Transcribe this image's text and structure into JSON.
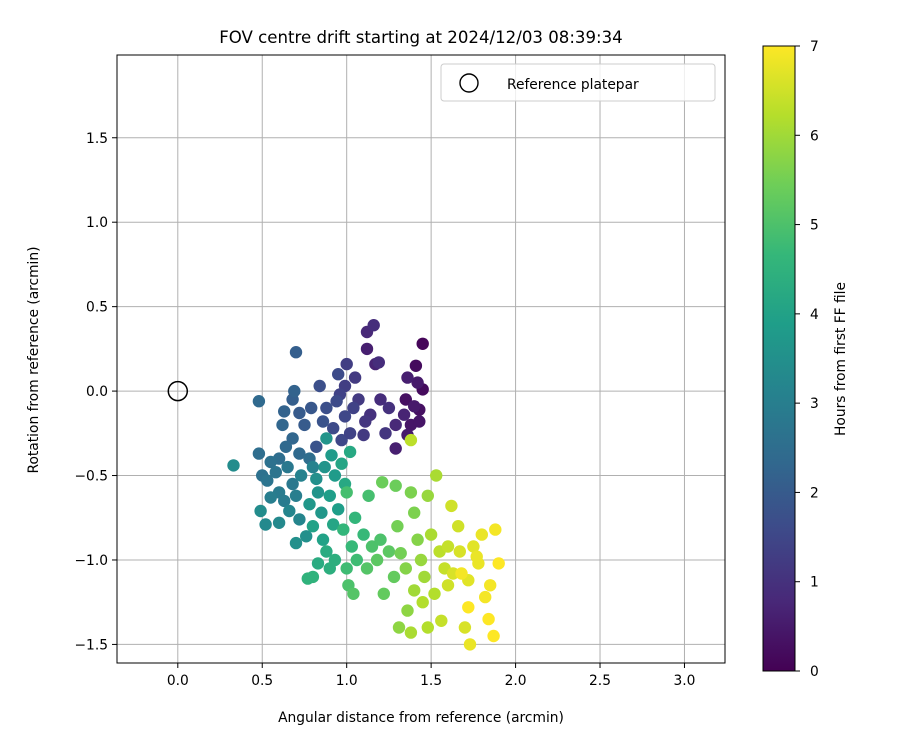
{
  "chart_data": {
    "type": "scatter",
    "title": "FOV centre drift starting at 2024/12/03 08:39:34",
    "xlabel": "Angular distance from reference (arcmin)",
    "ylabel": "Rotation from reference (arcmin)",
    "xlim": [
      -0.36,
      3.24
    ],
    "ylim": [
      -1.61,
      1.99
    ],
    "x_ticks": [
      0.0,
      0.5,
      1.0,
      1.5,
      2.0,
      2.5,
      3.0
    ],
    "x_tick_labels": [
      "0.0",
      "0.5",
      "1.0",
      "1.5",
      "2.0",
      "2.5",
      "3.0"
    ],
    "y_ticks": [
      -1.5,
      -1.0,
      -0.5,
      0.0,
      0.5,
      1.0,
      1.5
    ],
    "y_tick_labels": [
      "−1.5",
      "−1.0",
      "−0.5",
      "0.0",
      "0.5",
      "1.0",
      "1.5"
    ],
    "grid": true,
    "legend": {
      "placement": "top-right",
      "entries": [
        "Reference platepar"
      ]
    },
    "reference_point": {
      "name": "Reference platepar",
      "x": 0.0,
      "y": 0.0,
      "marker": "open-circle"
    },
    "colorbar": {
      "label": "Hours from first FF file",
      "min": 0,
      "max": 7,
      "ticks": [
        0,
        1,
        2,
        3,
        4,
        5,
        6,
        7
      ],
      "tick_labels": [
        "0",
        "1",
        "2",
        "3",
        "4",
        "5",
        "6",
        "7"
      ],
      "colormap": "viridis"
    },
    "colormap_stops": [
      "#440154",
      "#482878",
      "#3e4989",
      "#31688e",
      "#26828e",
      "#1f9e89",
      "#35b779",
      "#6ece58",
      "#b5de2b",
      "#fde725"
    ],
    "series": [
      {
        "points": [
          [
            1.45,
            0.28,
            0.1
          ],
          [
            1.41,
            0.15,
            0.2
          ],
          [
            1.45,
            0.01,
            0.2
          ],
          [
            1.35,
            -0.05,
            0.3
          ],
          [
            1.43,
            -0.11,
            0.3
          ],
          [
            1.38,
            -0.2,
            0.4
          ],
          [
            1.36,
            -0.26,
            0.5
          ],
          [
            1.29,
            -0.34,
            0.6
          ],
          [
            1.12,
            0.25,
            0.6
          ],
          [
            1.17,
            0.16,
            0.7
          ],
          [
            1.42,
            0.05,
            0.5
          ],
          [
            1.36,
            0.08,
            0.6
          ],
          [
            1.12,
            0.35,
            0.8
          ],
          [
            1.16,
            0.39,
            0.9
          ],
          [
            1.19,
            0.17,
            0.9
          ],
          [
            1.43,
            -0.18,
            0.4
          ],
          [
            1.4,
            -0.09,
            0.5
          ],
          [
            1.34,
            -0.14,
            0.7
          ],
          [
            1.29,
            -0.2,
            0.8
          ],
          [
            1.2,
            -0.05,
            0.9
          ],
          [
            1.25,
            -0.1,
            1.0
          ],
          [
            1.14,
            -0.14,
            1.0
          ],
          [
            1.23,
            -0.25,
            1.1
          ],
          [
            1.11,
            -0.18,
            1.1
          ],
          [
            1.1,
            -0.26,
            1.2
          ],
          [
            1.07,
            -0.05,
            1.2
          ],
          [
            1.05,
            0.08,
            1.2
          ],
          [
            1.0,
            0.16,
            1.3
          ],
          [
            0.99,
            0.03,
            1.3
          ],
          [
            0.96,
            -0.02,
            1.4
          ],
          [
            1.04,
            -0.1,
            1.4
          ],
          [
            0.99,
            -0.15,
            1.5
          ],
          [
            0.97,
            -0.29,
            1.5
          ],
          [
            0.94,
            -0.06,
            1.6
          ],
          [
            0.92,
            -0.22,
            1.6
          ],
          [
            0.88,
            -0.1,
            1.7
          ],
          [
            0.84,
            0.03,
            1.7
          ],
          [
            0.86,
            -0.18,
            1.8
          ],
          [
            0.82,
            -0.33,
            1.8
          ],
          [
            0.79,
            -0.1,
            1.9
          ],
          [
            0.95,
            0.1,
            1.6
          ],
          [
            1.02,
            -0.25,
            1.4
          ],
          [
            0.75,
            -0.2,
            2.0
          ],
          [
            0.72,
            -0.13,
            2.0
          ],
          [
            0.68,
            -0.05,
            2.1
          ],
          [
            0.7,
            0.23,
            2.1
          ],
          [
            0.69,
            0.0,
            2.2
          ],
          [
            0.63,
            -0.12,
            2.2
          ],
          [
            0.62,
            -0.2,
            2.3
          ],
          [
            0.68,
            -0.28,
            2.3
          ],
          [
            0.64,
            -0.33,
            2.4
          ],
          [
            0.48,
            -0.06,
            2.4
          ],
          [
            0.72,
            -0.37,
            2.4
          ],
          [
            0.78,
            -0.4,
            2.5
          ],
          [
            0.6,
            -0.4,
            2.5
          ],
          [
            0.48,
            -0.37,
            2.5
          ],
          [
            0.55,
            -0.42,
            2.6
          ],
          [
            0.5,
            -0.5,
            2.6
          ],
          [
            0.53,
            -0.53,
            2.7
          ],
          [
            0.58,
            -0.48,
            2.7
          ],
          [
            0.65,
            -0.45,
            2.8
          ],
          [
            0.68,
            -0.55,
            2.8
          ],
          [
            0.6,
            -0.6,
            2.9
          ],
          [
            0.63,
            -0.65,
            2.9
          ],
          [
            0.55,
            -0.63,
            3.0
          ],
          [
            0.7,
            -0.62,
            3.0
          ],
          [
            0.73,
            -0.5,
            3.1
          ],
          [
            0.8,
            -0.45,
            3.1
          ],
          [
            0.66,
            -0.71,
            3.2
          ],
          [
            0.72,
            -0.76,
            3.2
          ],
          [
            0.6,
            -0.78,
            3.3
          ],
          [
            0.52,
            -0.79,
            3.3
          ],
          [
            0.49,
            -0.71,
            3.4
          ],
          [
            0.33,
            -0.44,
            3.4
          ],
          [
            0.7,
            -0.9,
            3.5
          ],
          [
            0.76,
            -0.86,
            3.5
          ],
          [
            0.82,
            -0.52,
            3.5
          ],
          [
            0.87,
            -0.45,
            3.6
          ],
          [
            0.83,
            -0.6,
            3.6
          ],
          [
            0.88,
            -0.28,
            3.6
          ],
          [
            0.78,
            -0.67,
            3.7
          ],
          [
            0.85,
            -0.72,
            3.7
          ],
          [
            0.91,
            -0.38,
            3.8
          ],
          [
            0.93,
            -0.5,
            3.8
          ],
          [
            0.9,
            -0.62,
            3.9
          ],
          [
            0.95,
            -0.7,
            3.9
          ],
          [
            0.8,
            -0.8,
            4.0
          ],
          [
            0.86,
            -0.88,
            4.0
          ],
          [
            0.92,
            -0.79,
            4.1
          ],
          [
            0.97,
            -0.43,
            4.1
          ],
          [
            0.99,
            -0.55,
            4.2
          ],
          [
            1.02,
            -0.36,
            4.2
          ],
          [
            0.88,
            -0.95,
            4.3
          ],
          [
            0.83,
            -1.02,
            4.3
          ],
          [
            0.9,
            -1.05,
            4.4
          ],
          [
            0.93,
            -1.0,
            4.4
          ],
          [
            0.77,
            -1.11,
            4.5
          ],
          [
            0.8,
            -1.1,
            4.5
          ],
          [
            0.98,
            -0.82,
            4.6
          ],
          [
            1.05,
            -0.75,
            4.6
          ],
          [
            1.03,
            -0.92,
            4.7
          ],
          [
            1.1,
            -0.85,
            4.7
          ],
          [
            1.0,
            -1.05,
            4.8
          ],
          [
            1.06,
            -1.0,
            4.8
          ],
          [
            1.13,
            -0.62,
            4.9
          ],
          [
            1.0,
            -0.6,
            4.9
          ],
          [
            1.15,
            -0.92,
            5.0
          ],
          [
            1.2,
            -0.88,
            5.0
          ],
          [
            1.01,
            -1.15,
            5.0
          ],
          [
            1.04,
            -1.2,
            5.1
          ],
          [
            1.12,
            -1.05,
            5.1
          ],
          [
            1.18,
            -1.0,
            5.2
          ],
          [
            1.25,
            -0.95,
            5.2
          ],
          [
            1.22,
            -1.2,
            5.3
          ],
          [
            1.28,
            -1.1,
            5.3
          ],
          [
            1.21,
            -0.54,
            5.4
          ],
          [
            1.29,
            -0.56,
            5.4
          ],
          [
            1.3,
            -0.8,
            5.5
          ],
          [
            1.32,
            -0.96,
            5.5
          ],
          [
            1.38,
            -0.6,
            5.6
          ],
          [
            1.4,
            -0.72,
            5.6
          ],
          [
            1.35,
            -1.05,
            5.7
          ],
          [
            1.42,
            -0.88,
            5.7
          ],
          [
            1.36,
            -1.3,
            5.8
          ],
          [
            1.31,
            -1.4,
            5.8
          ],
          [
            1.44,
            -1.0,
            5.9
          ],
          [
            1.48,
            -0.62,
            5.9
          ],
          [
            1.4,
            -1.18,
            6.0
          ],
          [
            1.46,
            -1.1,
            6.0
          ],
          [
            1.5,
            -0.85,
            6.1
          ],
          [
            1.53,
            -0.5,
            6.1
          ],
          [
            1.38,
            -1.43,
            6.1
          ],
          [
            1.45,
            -1.25,
            6.2
          ],
          [
            1.52,
            -1.2,
            6.2
          ],
          [
            1.48,
            -1.4,
            6.2
          ],
          [
            1.38,
            -0.29,
            6.3
          ],
          [
            1.55,
            -0.95,
            6.3
          ],
          [
            1.58,
            -1.05,
            6.4
          ],
          [
            1.6,
            -0.92,
            6.4
          ],
          [
            1.56,
            -1.36,
            6.4
          ],
          [
            1.62,
            -0.68,
            6.5
          ],
          [
            1.66,
            -0.8,
            6.5
          ],
          [
            1.63,
            -1.08,
            6.6
          ],
          [
            1.67,
            -0.95,
            6.6
          ],
          [
            1.7,
            -1.4,
            6.6
          ],
          [
            1.72,
            -1.12,
            6.7
          ],
          [
            1.75,
            -0.92,
            6.7
          ],
          [
            1.78,
            -1.02,
            6.8
          ],
          [
            1.73,
            -1.5,
            6.8
          ],
          [
            1.8,
            -0.85,
            6.8
          ],
          [
            1.82,
            -1.22,
            6.9
          ],
          [
            1.85,
            -1.15,
            6.9
          ],
          [
            1.88,
            -0.82,
            6.9
          ],
          [
            1.9,
            -1.02,
            7.0
          ],
          [
            1.87,
            -1.45,
            7.0
          ],
          [
            1.72,
            -1.28,
            7.0
          ],
          [
            1.84,
            -1.35,
            7.0
          ],
          [
            1.68,
            -1.08,
            6.9
          ],
          [
            1.77,
            -0.98,
            6.8
          ],
          [
            1.6,
            -1.15,
            6.5
          ]
        ]
      }
    ]
  }
}
